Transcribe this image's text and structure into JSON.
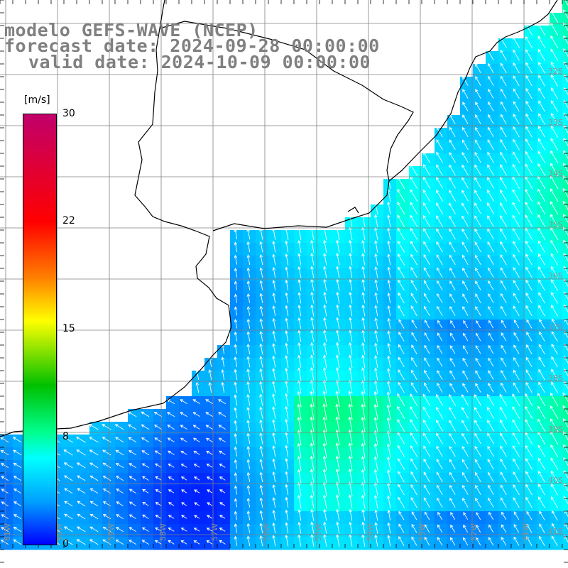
{
  "title": {
    "line1": "modelo GEFS-WAVE (NCEP)",
    "line2": "forecast date: 2024-09-28 00:00:00",
    "line3": "valid date: 2024-10-09 00:00:00"
  },
  "colorbar": {
    "units": "[m/s]",
    "ticks": [
      "30",
      "22",
      "15",
      "8",
      "0"
    ],
    "min": 0,
    "max": 30,
    "colors": [
      "#0000ff",
      "#00a0ff",
      "#00ffff",
      "#00ff90",
      "#00c000",
      "#ffff00",
      "#ff8000",
      "#ff0000",
      "#c0006a"
    ]
  },
  "map": {
    "variable": "wind speed and direction",
    "longitude_labels": [
      "61W",
      "60W",
      "59W",
      "58W",
      "57W",
      "56W",
      "55W",
      "54W",
      "53W",
      "52W",
      "51W"
    ],
    "latitude_labels": [
      "32S",
      "33S",
      "34S",
      "35S",
      "36S",
      "37S",
      "38S",
      "39S",
      "40S",
      "41S"
    ],
    "land_color": "#ffffff",
    "grid_color": "#808080",
    "vector_color": "#ffffff"
  }
}
